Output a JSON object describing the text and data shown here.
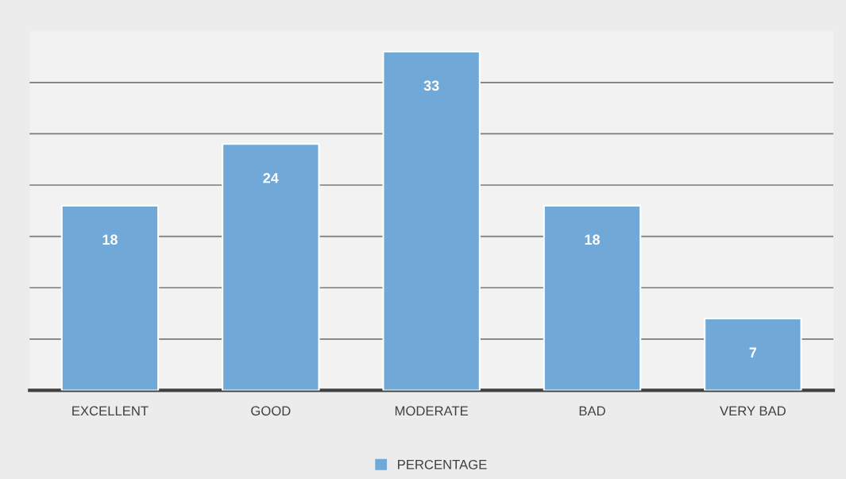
{
  "chart_data": {
    "type": "bar",
    "categories": [
      "EXCELLENT",
      "GOOD",
      "MODERATE",
      "BAD",
      "VERY BAD"
    ],
    "series": [
      {
        "name": "PERCENTAGE",
        "color": "#70a8d8",
        "values": [
          18,
          24,
          33,
          18,
          7
        ]
      }
    ],
    "ylim": [
      0,
      35
    ],
    "yticks": [
      {
        "value": 0,
        "label": null
      },
      {
        "value": 5,
        "label": null
      },
      {
        "value": 10,
        "label": null
      },
      {
        "value": 15,
        "label": null
      },
      {
        "value": 20,
        "label": null
      },
      {
        "value": 25,
        "label": null
      },
      {
        "value": 30,
        "label": null
      }
    ],
    "tick_labels": "x",
    "grid": "y",
    "legend": "bottom",
    "data_labels": true
  }
}
